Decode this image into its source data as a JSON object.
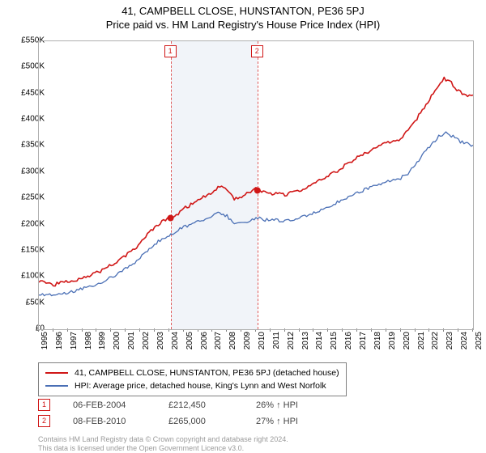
{
  "title_line1": "41, CAMPBELL CLOSE, HUNSTANTON, PE36 5PJ",
  "title_line2": "Price paid vs. HM Land Registry's House Price Index (HPI)",
  "chart": {
    "type": "line",
    "background_color": "#ffffff",
    "plot_border_color": "#b0b0b0",
    "x_start_year": 1995,
    "x_end_year": 2025,
    "ylim": [
      0,
      550000
    ],
    "ytick_step": 50000,
    "y_tick_labels": [
      "£0",
      "£50K",
      "£100K",
      "£150K",
      "£200K",
      "£250K",
      "£300K",
      "£350K",
      "£400K",
      "£450K",
      "£500K",
      "£550K"
    ],
    "x_tick_labels": [
      "1995",
      "1996",
      "1997",
      "1998",
      "1999",
      "2000",
      "2001",
      "2002",
      "2003",
      "2004",
      "2005",
      "2006",
      "2007",
      "2008",
      "2009",
      "2010",
      "2011",
      "2012",
      "2013",
      "2014",
      "2015",
      "2016",
      "2017",
      "2018",
      "2019",
      "2020",
      "2021",
      "2022",
      "2023",
      "2024",
      "2025"
    ],
    "shaded_spans": [
      {
        "from_year": 2004.1,
        "to_year": 2010.1,
        "color": "#f1f4f9"
      }
    ],
    "sale_markers": [
      {
        "num": "1",
        "year": 2004.1,
        "dash_color": "#e05a5a"
      },
      {
        "num": "2",
        "year": 2010.1,
        "dash_color": "#e05a5a"
      }
    ],
    "series": [
      {
        "name": "property",
        "label": "41, CAMPBELL CLOSE, HUNSTANTON, PE36 5PJ (detached house)",
        "color": "#d01616",
        "line_width": 1.6,
        "points_year_value": [
          [
            1995.0,
            93000
          ],
          [
            1995.5,
            90000
          ],
          [
            1996.0,
            85000
          ],
          [
            1996.5,
            88000
          ],
          [
            1997.0,
            92000
          ],
          [
            1997.5,
            94000
          ],
          [
            1998.0,
            99000
          ],
          [
            1998.5,
            103000
          ],
          [
            1999.0,
            108000
          ],
          [
            1999.5,
            114000
          ],
          [
            2000.0,
            123000
          ],
          [
            2000.5,
            130000
          ],
          [
            2001.0,
            141000
          ],
          [
            2001.5,
            150000
          ],
          [
            2002.0,
            165000
          ],
          [
            2002.5,
            180000
          ],
          [
            2003.0,
            195000
          ],
          [
            2003.5,
            205000
          ],
          [
            2004.0,
            212000
          ],
          [
            2004.1,
            212450
          ],
          [
            2004.5,
            218000
          ],
          [
            2005.0,
            230000
          ],
          [
            2005.5,
            238000
          ],
          [
            2006.0,
            248000
          ],
          [
            2006.5,
            254000
          ],
          [
            2007.0,
            263000
          ],
          [
            2007.5,
            272000
          ],
          [
            2008.0,
            265000
          ],
          [
            2008.5,
            248000
          ],
          [
            2009.0,
            253000
          ],
          [
            2009.5,
            262000
          ],
          [
            2010.0,
            268000
          ],
          [
            2010.1,
            265000
          ],
          [
            2010.5,
            263000
          ],
          [
            2011.0,
            258000
          ],
          [
            2011.5,
            260000
          ],
          [
            2012.0,
            257000
          ],
          [
            2012.5,
            261000
          ],
          [
            2013.0,
            265000
          ],
          [
            2013.5,
            270000
          ],
          [
            2014.0,
            278000
          ],
          [
            2014.5,
            285000
          ],
          [
            2015.0,
            293000
          ],
          [
            2015.5,
            300000
          ],
          [
            2016.0,
            310000
          ],
          [
            2016.5,
            320000
          ],
          [
            2017.0,
            328000
          ],
          [
            2017.5,
            335000
          ],
          [
            2018.0,
            343000
          ],
          [
            2018.5,
            350000
          ],
          [
            2019.0,
            355000
          ],
          [
            2019.5,
            358000
          ],
          [
            2020.0,
            365000
          ],
          [
            2020.5,
            378000
          ],
          [
            2021.0,
            398000
          ],
          [
            2021.5,
            418000
          ],
          [
            2022.0,
            440000
          ],
          [
            2022.5,
            462000
          ],
          [
            2023.0,
            478000
          ],
          [
            2023.5,
            470000
          ],
          [
            2024.0,
            455000
          ],
          [
            2024.5,
            448000
          ],
          [
            2025.0,
            445000
          ]
        ],
        "sale_dots": [
          {
            "year": 2004.1,
            "value": 212450
          },
          {
            "year": 2010.1,
            "value": 265000
          }
        ],
        "dot_color": "#d01616",
        "dot_radius": 4
      },
      {
        "name": "hpi",
        "label": "HPI: Average price, detached house, King's Lynn and West Norfolk",
        "color": "#4a6fb5",
        "line_width": 1.3,
        "points_year_value": [
          [
            1995.0,
            68000
          ],
          [
            1995.5,
            67000
          ],
          [
            1996.0,
            66000
          ],
          [
            1996.5,
            68000
          ],
          [
            1997.0,
            71000
          ],
          [
            1997.5,
            74000
          ],
          [
            1998.0,
            78000
          ],
          [
            1998.5,
            82000
          ],
          [
            1999.0,
            87000
          ],
          [
            1999.5,
            92000
          ],
          [
            2000.0,
            99000
          ],
          [
            2000.5,
            106000
          ],
          [
            2001.0,
            115000
          ],
          [
            2001.5,
            124000
          ],
          [
            2002.0,
            137000
          ],
          [
            2002.5,
            150000
          ],
          [
            2003.0,
            162000
          ],
          [
            2003.5,
            172000
          ],
          [
            2004.0,
            180000
          ],
          [
            2004.5,
            188000
          ],
          [
            2005.0,
            196000
          ],
          [
            2005.5,
            200000
          ],
          [
            2006.0,
            205000
          ],
          [
            2006.5,
            210000
          ],
          [
            2007.0,
            218000
          ],
          [
            2007.5,
            222000
          ],
          [
            2008.0,
            216000
          ],
          [
            2008.5,
            200000
          ],
          [
            2009.0,
            202000
          ],
          [
            2009.5,
            208000
          ],
          [
            2010.0,
            212000
          ],
          [
            2010.5,
            210000
          ],
          [
            2011.0,
            207000
          ],
          [
            2011.5,
            208000
          ],
          [
            2012.0,
            206000
          ],
          [
            2012.5,
            209000
          ],
          [
            2013.0,
            212000
          ],
          [
            2013.5,
            216000
          ],
          [
            2014.0,
            222000
          ],
          [
            2014.5,
            228000
          ],
          [
            2015.0,
            234000
          ],
          [
            2015.5,
            240000
          ],
          [
            2016.0,
            248000
          ],
          [
            2016.5,
            255000
          ],
          [
            2017.0,
            261000
          ],
          [
            2017.5,
            267000
          ],
          [
            2018.0,
            272000
          ],
          [
            2018.5,
            277000
          ],
          [
            2019.0,
            281000
          ],
          [
            2019.5,
            284000
          ],
          [
            2020.0,
            289000
          ],
          [
            2020.5,
            298000
          ],
          [
            2021.0,
            315000
          ],
          [
            2021.5,
            332000
          ],
          [
            2022.0,
            350000
          ],
          [
            2022.5,
            365000
          ],
          [
            2023.0,
            375000
          ],
          [
            2023.5,
            370000
          ],
          [
            2024.0,
            360000
          ],
          [
            2024.5,
            355000
          ],
          [
            2025.0,
            352000
          ]
        ]
      }
    ]
  },
  "legend": {
    "items": [
      {
        "color": "#d01616",
        "label": "41, CAMPBELL CLOSE, HUNSTANTON, PE36 5PJ (detached house)"
      },
      {
        "color": "#4a6fb5",
        "label": "HPI: Average price, detached house, King's Lynn and West Norfolk"
      }
    ]
  },
  "sales": [
    {
      "num": "1",
      "date": "06-FEB-2004",
      "price": "£212,450",
      "delta": "26% ↑ HPI"
    },
    {
      "num": "2",
      "date": "08-FEB-2010",
      "price": "£265,000",
      "delta": "27% ↑ HPI"
    }
  ],
  "footer_line1": "Contains HM Land Registry data © Crown copyright and database right 2024.",
  "footer_line2": "This data is licensed under the Open Government Licence v3.0."
}
